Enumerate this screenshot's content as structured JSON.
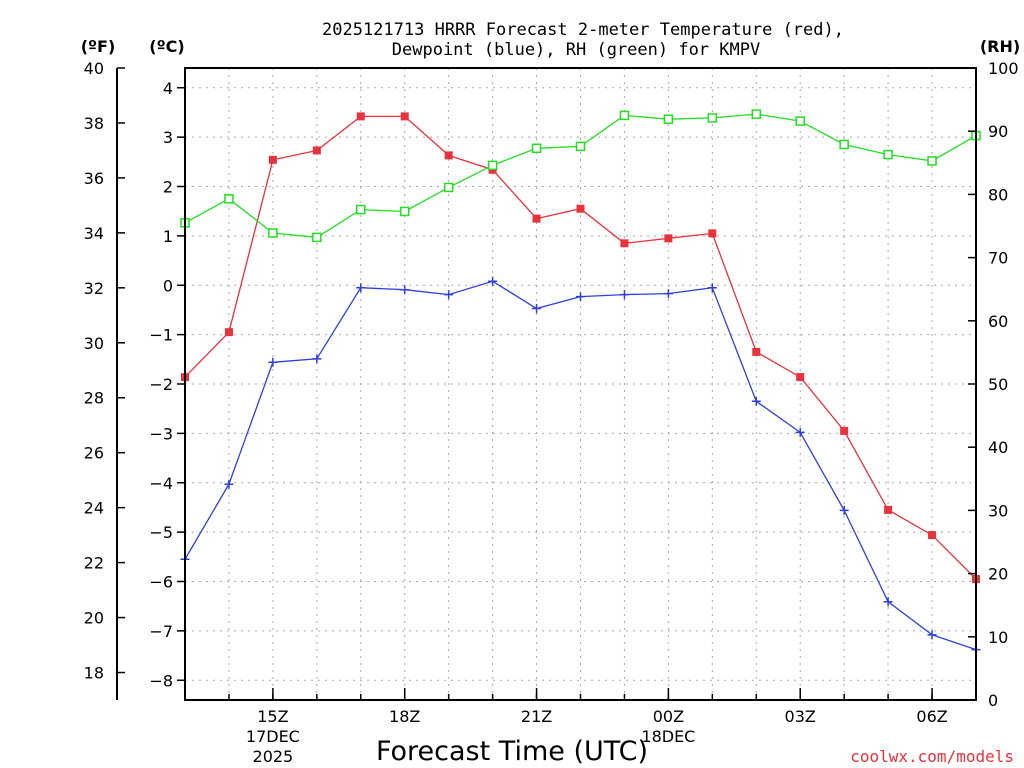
{
  "chart_data": {
    "type": "line",
    "title_line1": "2025121713 HRRR Forecast 2-meter Temperature (red),",
    "title_line2": "Dewpoint (blue), RH (green) for KMPV",
    "xlabel": "Forecast Time (UTC)",
    "credit": "coolwx.com/models",
    "units": {
      "fahrenheit": "(ºF)",
      "celsius": "(ºC)",
      "rh": "(RH)"
    },
    "left_f_ticks": [
      "18",
      "20",
      "22",
      "24",
      "26",
      "28",
      "30",
      "32",
      "34",
      "36",
      "38",
      "40"
    ],
    "left_c_ticks": [
      "−8",
      "−7",
      "−6",
      "−5",
      "−4",
      "−3",
      "−2",
      "−1",
      "0",
      "1",
      "2",
      "3",
      "4"
    ],
    "right_rh_ticks": [
      "0",
      "10",
      "20",
      "30",
      "40",
      "50",
      "60",
      "70",
      "80",
      "90",
      "100"
    ],
    "x_ticks": [
      {
        "hour": 15,
        "label": "15Z",
        "sub1": "17DEC",
        "sub2": "2025"
      },
      {
        "hour": 18,
        "label": "18Z",
        "sub1": "",
        "sub2": ""
      },
      {
        "hour": 21,
        "label": "21Z",
        "sub1": "",
        "sub2": ""
      },
      {
        "hour": 24,
        "label": "00Z",
        "sub1": "18DEC",
        "sub2": ""
      },
      {
        "hour": 27,
        "label": "03Z",
        "sub1": "",
        "sub2": ""
      },
      {
        "hour": 30,
        "label": "06Z",
        "sub1": "",
        "sub2": ""
      }
    ],
    "x_hours": [
      13,
      14,
      15,
      16,
      17,
      18,
      19,
      20,
      21,
      22,
      23,
      24,
      25,
      26,
      27,
      28,
      29,
      30,
      31
    ],
    "xlim": [
      13,
      31
    ],
    "ylim_c": [
      -8.4,
      4.4
    ],
    "ylim_f": [
      17.0,
      40.0
    ],
    "ylim_rh": [
      0,
      100
    ],
    "series": [
      {
        "name": "2-meter Temperature",
        "axis": "celsius",
        "color": "#e8323c",
        "marker": "filled-square",
        "values": [
          -1.86,
          -0.95,
          2.54,
          2.73,
          3.42,
          3.42,
          2.63,
          2.34,
          1.35,
          1.55,
          0.85,
          0.95,
          1.05,
          -1.35,
          -1.86,
          -2.95,
          -4.55,
          -5.06,
          -5.95
        ]
      },
      {
        "name": "Dewpoint",
        "axis": "celsius",
        "color": "#2e3fdc",
        "marker": "plus",
        "values": [
          -5.55,
          -4.03,
          -1.56,
          -1.49,
          -0.05,
          -0.09,
          -0.19,
          0.08,
          -0.47,
          -0.23,
          -0.19,
          -0.17,
          -0.05,
          -2.35,
          -2.98,
          -4.56,
          -6.41,
          -7.08,
          -7.38
        ]
      },
      {
        "name": "Relative Humidity",
        "axis": "rh",
        "color": "#22dd22",
        "marker": "open-square",
        "values": [
          75.5,
          79.3,
          73.9,
          73.2,
          77.6,
          77.3,
          81.1,
          84.6,
          87.3,
          87.6,
          92.5,
          91.9,
          92.1,
          92.7,
          91.6,
          87.9,
          86.3,
          85.3,
          89.3
        ]
      }
    ]
  }
}
